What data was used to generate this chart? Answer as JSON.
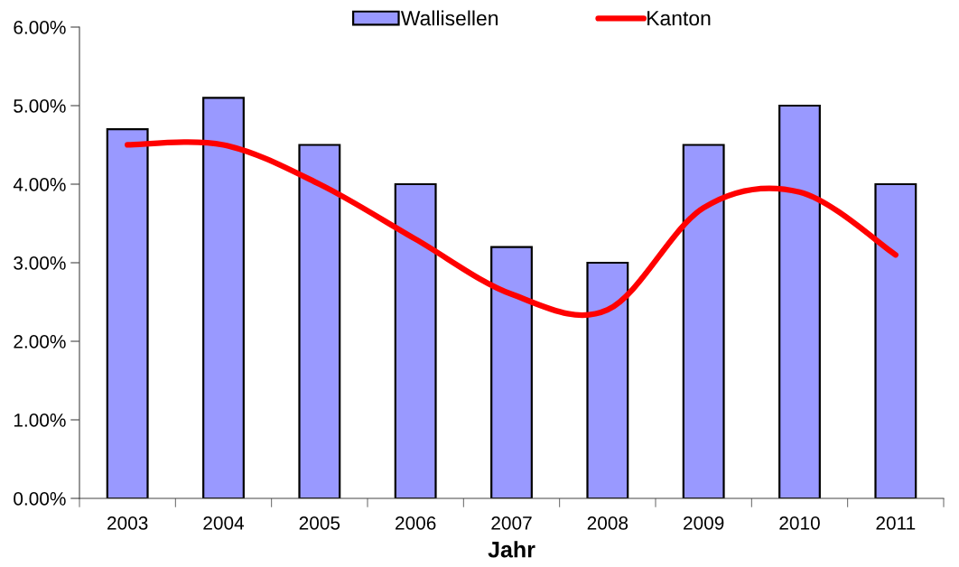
{
  "chart_data": {
    "type": "bar",
    "xlabel": "Jahr",
    "categories": [
      "2003",
      "2004",
      "2005",
      "2006",
      "2007",
      "2008",
      "2009",
      "2010",
      "2011"
    ],
    "series": [
      {
        "name": "Wallisellen",
        "color": "#9999ff",
        "values": [
          4.7,
          5.1,
          4.5,
          4.0,
          3.2,
          3.0,
          4.5,
          5.0,
          4.0
        ]
      },
      {
        "name": "Kanton",
        "type": "line",
        "color": "#ff0000",
        "values": [
          4.5,
          4.5,
          4.0,
          3.3,
          2.6,
          2.4,
          3.7,
          3.9,
          3.1
        ]
      }
    ],
    "ylim": [
      0,
      6
    ],
    "yticks": [
      {
        "value": 0,
        "label": "0.00%"
      },
      {
        "value": 1,
        "label": "1.00%"
      },
      {
        "value": 2,
        "label": "2.00%"
      },
      {
        "value": 3,
        "label": "3.00%"
      },
      {
        "value": 4,
        "label": "4.00%"
      },
      {
        "value": 5,
        "label": "5.00%"
      },
      {
        "value": 6,
        "label": "6.00%"
      }
    ],
    "legend": "top",
    "grid": false,
    "line_style": "solid"
  }
}
